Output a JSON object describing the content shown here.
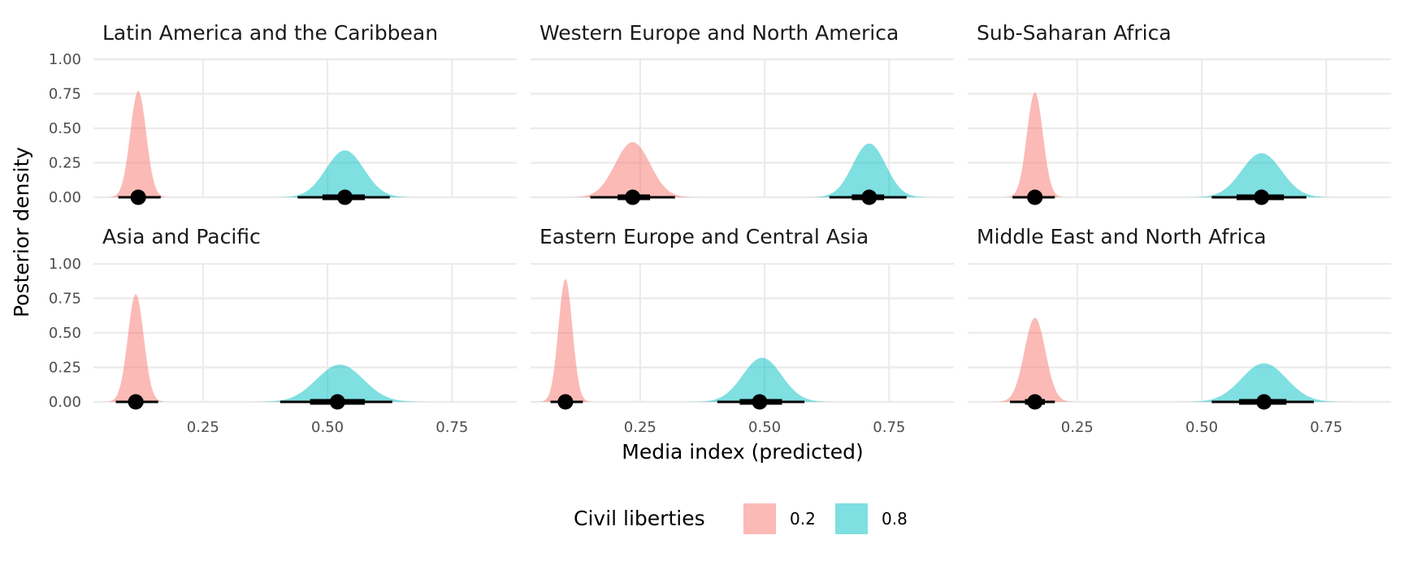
{
  "chart_data": {
    "type": "area",
    "xlabel": "Media index (predicted)",
    "ylabel": "Posterior density",
    "x_ticks": [
      "0.25",
      "0.50",
      "0.75"
    ],
    "y_ticks": [
      "0.00",
      "0.25",
      "0.50",
      "0.75",
      "1.00"
    ],
    "xlim": [
      0.03,
      0.88
    ],
    "ylim": [
      0,
      1.0
    ],
    "grid": true,
    "legend": {
      "title": "Civil liberties",
      "position": "bottom",
      "entries": [
        {
          "label": "0.2",
          "color": "#F8766D"
        },
        {
          "label": "0.8",
          "color": "#00BFC4"
        }
      ]
    },
    "facets": [
      {
        "title": "Latin America and the Caribbean",
        "series": [
          {
            "name": "0.2",
            "mean": 0.12,
            "sd": 0.016,
            "peak": 0.77,
            "point": 0.12,
            "ci66": [
              0.105,
              0.135
            ],
            "ci95": [
              0.08,
              0.165
            ]
          },
          {
            "name": "0.8",
            "mean": 0.535,
            "sd": 0.038,
            "peak": 0.34,
            "point": 0.535,
            "ci66": [
              0.49,
              0.575
            ],
            "ci95": [
              0.44,
              0.625
            ]
          }
        ]
      },
      {
        "title": "Western Europe and North America",
        "series": [
          {
            "name": "0.2",
            "mean": 0.235,
            "sd": 0.035,
            "peak": 0.4,
            "point": 0.235,
            "ci66": [
              0.205,
              0.27
            ],
            "ci95": [
              0.15,
              0.32
            ]
          },
          {
            "name": "0.8",
            "mean": 0.71,
            "sd": 0.033,
            "peak": 0.39,
            "point": 0.71,
            "ci66": [
              0.675,
              0.74
            ],
            "ci95": [
              0.63,
              0.785
            ]
          }
        ]
      },
      {
        "title": "Sub-Saharan Africa",
        "series": [
          {
            "name": "0.2",
            "mean": 0.165,
            "sd": 0.016,
            "peak": 0.76,
            "point": 0.165,
            "ci66": [
              0.15,
              0.18
            ],
            "ci95": [
              0.12,
              0.205
            ]
          },
          {
            "name": "0.8",
            "mean": 0.62,
            "sd": 0.04,
            "peak": 0.32,
            "point": 0.62,
            "ci66": [
              0.57,
              0.665
            ],
            "ci95": [
              0.52,
              0.71
            ]
          }
        ]
      },
      {
        "title": "Asia and Pacific",
        "series": [
          {
            "name": "0.2",
            "mean": 0.115,
            "sd": 0.016,
            "peak": 0.78,
            "point": 0.115,
            "ci66": [
              0.1,
              0.13
            ],
            "ci95": [
              0.075,
              0.16
            ]
          },
          {
            "name": "0.8",
            "mean": 0.525,
            "sd": 0.047,
            "peak": 0.27,
            "point": 0.52,
            "ci66": [
              0.465,
              0.575
            ],
            "ci95": [
              0.405,
              0.63
            ]
          }
        ]
      },
      {
        "title": "Eastern Europe and Central Asia",
        "series": [
          {
            "name": "0.2",
            "mean": 0.1,
            "sd": 0.014,
            "peak": 0.89,
            "point": 0.1,
            "ci66": [
              0.09,
              0.11
            ],
            "ci95": [
              0.07,
              0.135
            ]
          },
          {
            "name": "0.8",
            "mean": 0.495,
            "sd": 0.039,
            "peak": 0.32,
            "point": 0.49,
            "ci66": [
              0.45,
              0.535
            ],
            "ci95": [
              0.405,
              0.58
            ]
          }
        ]
      },
      {
        "title": "Middle East and North Africa",
        "series": [
          {
            "name": "0.2",
            "mean": 0.165,
            "sd": 0.021,
            "peak": 0.61,
            "point": 0.165,
            "ci66": [
              0.145,
              0.185
            ],
            "ci95": [
              0.115,
              0.205
            ]
          },
          {
            "name": "0.8",
            "mean": 0.625,
            "sd": 0.045,
            "peak": 0.28,
            "point": 0.625,
            "ci66": [
              0.575,
              0.67
            ],
            "ci95": [
              0.52,
              0.725
            ]
          }
        ]
      }
    ]
  }
}
